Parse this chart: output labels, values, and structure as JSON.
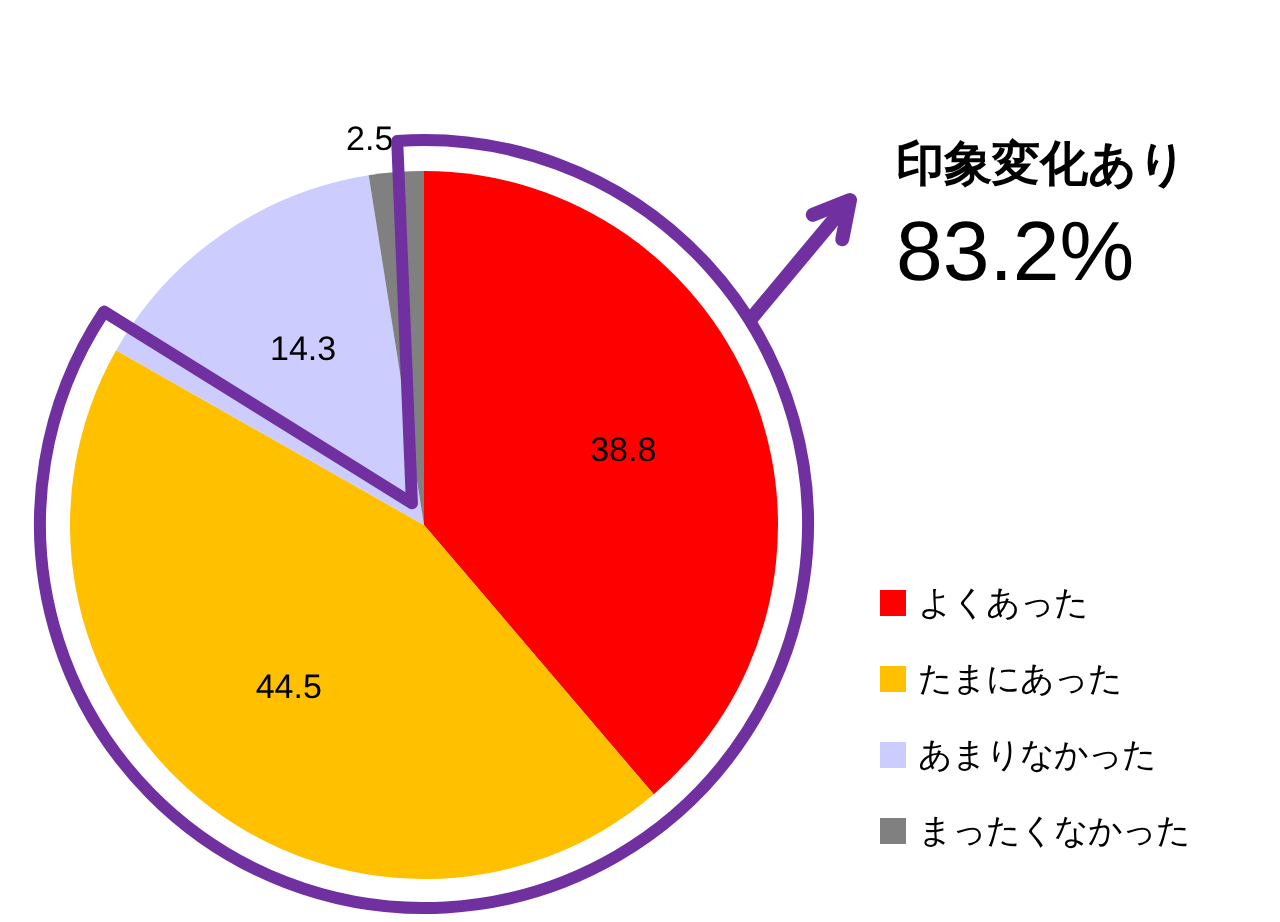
{
  "chart_data": {
    "type": "pie",
    "categories": [
      "よくあった",
      "たまにあった",
      "あまりなかった",
      "まったくなかった"
    ],
    "values": [
      38.8,
      44.5,
      14.3,
      2.5
    ],
    "colors": [
      "#ff0000",
      "#ffc000",
      "#ccccff",
      "#808080"
    ],
    "data_labels": true,
    "legend": "bottom right",
    "annotations": [
      "印象変化あり",
      "83.2%"
    ]
  }
}
